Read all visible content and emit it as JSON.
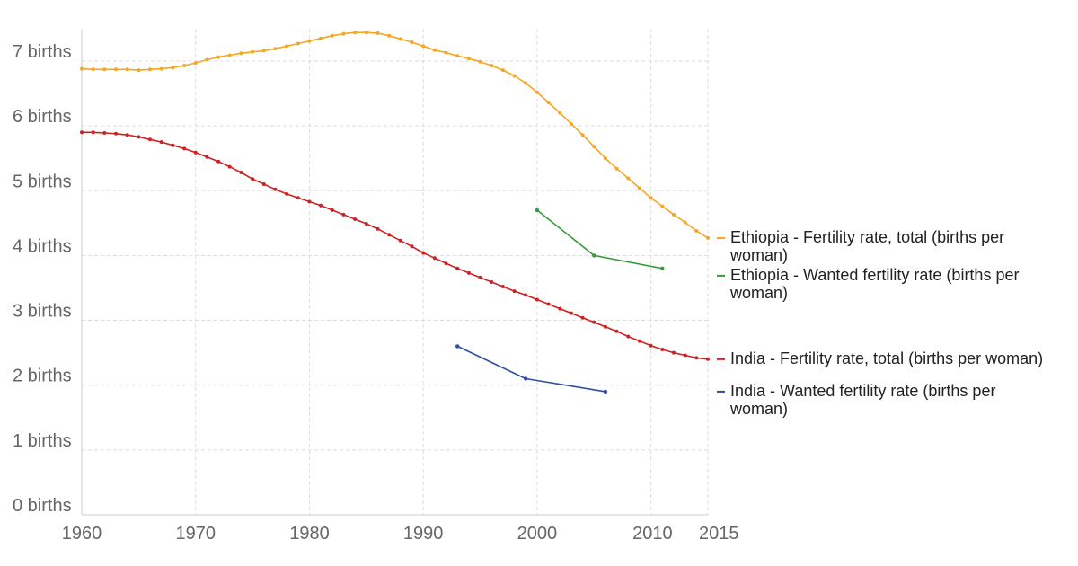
{
  "chart_data": {
    "type": "line",
    "title": "",
    "xlabel": "",
    "ylabel": "",
    "xlim": [
      1960,
      2015
    ],
    "ylim": [
      0,
      7.5
    ],
    "x_ticks": [
      1960,
      1970,
      1980,
      1990,
      2000,
      2010,
      2015
    ],
    "y_ticks": [
      {
        "value": 0,
        "label": "0 births"
      },
      {
        "value": 1,
        "label": "1 births"
      },
      {
        "value": 2,
        "label": "2 births"
      },
      {
        "value": 3,
        "label": "3 births"
      },
      {
        "value": 4,
        "label": "4 births"
      },
      {
        "value": 5,
        "label": "5 births"
      },
      {
        "value": 6,
        "label": "6 births"
      },
      {
        "value": 7,
        "label": "7 births"
      }
    ],
    "grid": true,
    "legend_placement": "right, at series ends",
    "series": [
      {
        "name": "Ethiopia - Fertility rate, total (births per woman)",
        "label_lines": [
          "Ethiopia - Fertility rate, total (births per",
          "woman)"
        ],
        "color": "#f5a623",
        "markers": true,
        "x": [
          1960,
          1961,
          1962,
          1963,
          1964,
          1965,
          1966,
          1967,
          1968,
          1969,
          1970,
          1971,
          1972,
          1973,
          1974,
          1975,
          1976,
          1977,
          1978,
          1979,
          1980,
          1981,
          1982,
          1983,
          1984,
          1985,
          1986,
          1987,
          1988,
          1989,
          1990,
          1991,
          1992,
          1993,
          1994,
          1995,
          1996,
          1997,
          1998,
          1999,
          2000,
          2001,
          2002,
          2003,
          2004,
          2005,
          2006,
          2007,
          2008,
          2009,
          2010,
          2011,
          2012,
          2013,
          2014,
          2015
        ],
        "y": [
          6.88,
          6.87,
          6.87,
          6.87,
          6.87,
          6.86,
          6.87,
          6.88,
          6.9,
          6.93,
          6.97,
          7.02,
          7.06,
          7.09,
          7.12,
          7.14,
          7.16,
          7.19,
          7.23,
          7.27,
          7.31,
          7.35,
          7.39,
          7.42,
          7.44,
          7.44,
          7.43,
          7.39,
          7.34,
          7.29,
          7.23,
          7.17,
          7.13,
          7.08,
          7.04,
          6.99,
          6.93,
          6.86,
          6.77,
          6.66,
          6.52,
          6.36,
          6.2,
          6.03,
          5.86,
          5.68,
          5.5,
          5.34,
          5.19,
          5.04,
          4.89,
          4.76,
          4.63,
          4.51,
          4.38,
          4.27
        ]
      },
      {
        "name": "Ethiopia - Wanted fertility rate (births per woman)",
        "label_lines": [
          "Ethiopia - Wanted fertility rate (births per",
          "woman)"
        ],
        "color": "#3a9a3a",
        "markers": false,
        "x": [
          2000,
          2005,
          2011
        ],
        "y": [
          4.7,
          4.0,
          3.8
        ]
      },
      {
        "name": "India - Fertility rate, total (births per woman)",
        "label_lines": [
          "India - Fertility rate, total (births per woman)"
        ],
        "color": "#cc2222",
        "markers": true,
        "x": [
          1960,
          1961,
          1962,
          1963,
          1964,
          1965,
          1966,
          1967,
          1968,
          1969,
          1970,
          1971,
          1972,
          1973,
          1974,
          1975,
          1976,
          1977,
          1978,
          1979,
          1980,
          1981,
          1982,
          1983,
          1984,
          1985,
          1986,
          1987,
          1988,
          1989,
          1990,
          1991,
          1992,
          1993,
          1994,
          1995,
          1996,
          1997,
          1998,
          1999,
          2000,
          2001,
          2002,
          2003,
          2004,
          2005,
          2006,
          2007,
          2008,
          2009,
          2010,
          2011,
          2012,
          2013,
          2014,
          2015
        ],
        "y": [
          5.9,
          5.9,
          5.89,
          5.88,
          5.86,
          5.83,
          5.79,
          5.75,
          5.7,
          5.65,
          5.59,
          5.52,
          5.45,
          5.37,
          5.28,
          5.18,
          5.1,
          5.02,
          4.95,
          4.89,
          4.83,
          4.77,
          4.7,
          4.63,
          4.56,
          4.49,
          4.41,
          4.32,
          4.23,
          4.14,
          4.04,
          3.96,
          3.88,
          3.8,
          3.73,
          3.66,
          3.59,
          3.52,
          3.45,
          3.39,
          3.32,
          3.25,
          3.18,
          3.11,
          3.04,
          2.97,
          2.9,
          2.83,
          2.75,
          2.68,
          2.61,
          2.55,
          2.5,
          2.46,
          2.42,
          2.4
        ]
      },
      {
        "name": "India - Wanted fertility rate (births per woman)",
        "label_lines": [
          "India - Wanted fertility rate (births per",
          "woman)"
        ],
        "color": "#2c4fa0",
        "markers": false,
        "x": [
          1993,
          1999,
          2006
        ],
        "y": [
          2.6,
          2.1,
          1.9
        ]
      }
    ]
  }
}
